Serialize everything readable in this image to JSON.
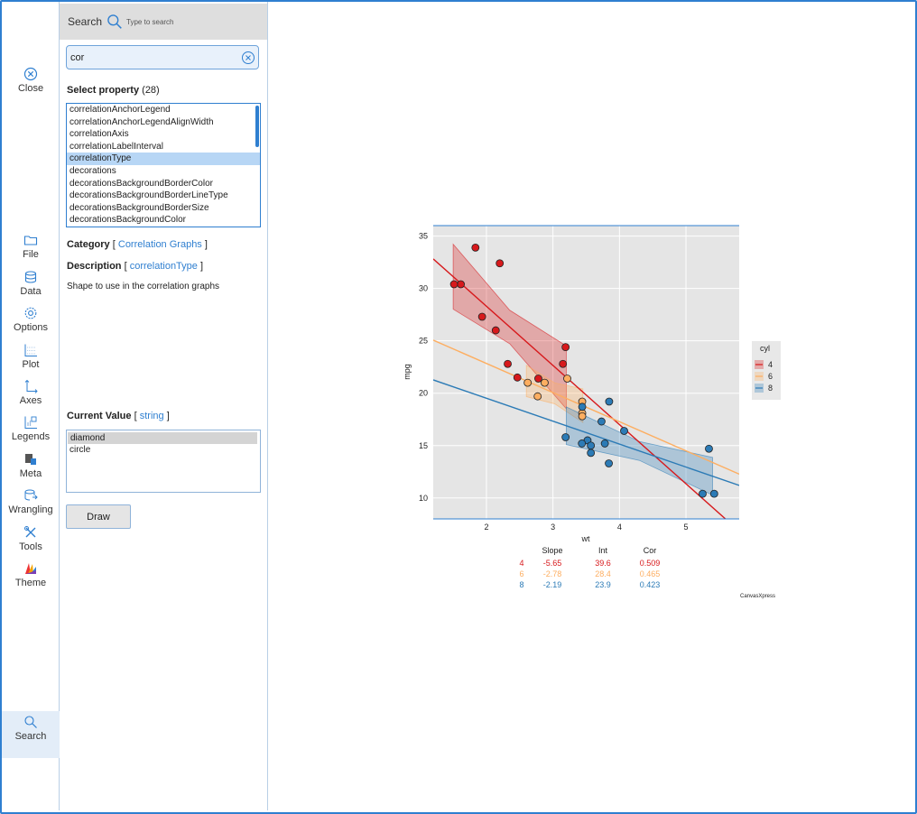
{
  "toolbar": {
    "close": "Close",
    "file": "File",
    "data": "Data",
    "options": "Options",
    "plot": "Plot",
    "axes": "Axes",
    "legends": "Legends",
    "meta": "Meta",
    "wrangling": "Wrangling",
    "tools": "Tools",
    "theme": "Theme",
    "search": "Search"
  },
  "panel": {
    "title": "Search",
    "hint": "Type to search",
    "search_value": "cor",
    "select_property_label": "Select property",
    "select_property_count": "(28)",
    "properties": [
      "correlationAnchorLegend",
      "correlationAnchorLegendAlignWidth",
      "correlationAxis",
      "correlationLabelInterval",
      "correlationType",
      "decorations",
      "decorationsBackgroundBorderColor",
      "decorationsBackgroundBorderLineType",
      "decorationsBackgroundBorderSize",
      "decorationsBackgroundColor"
    ],
    "selected_property": "correlationType",
    "category_label": "Category",
    "category_value": "Correlation Graphs",
    "description_label": "Description",
    "description_value": "correlationType",
    "description_text": "Shape to use in the correlation graphs",
    "current_value_label": "Current Value",
    "current_value_type": "string",
    "values": [
      "diamond",
      "circle"
    ],
    "selected_value": "diamond",
    "draw_button": "Draw"
  },
  "colors": {
    "accent": "#2f7fd0",
    "cyl4": "#d7191c",
    "cyl6": "#fdae61",
    "cyl8": "#2c7bb6",
    "plot_bg": "#e5e5e5"
  },
  "chart_data": {
    "type": "scatter",
    "xlabel": "wt",
    "ylabel": "mpg",
    "xlim": [
      1.2,
      5.8
    ],
    "ylim": [
      8,
      36
    ],
    "xticks": [
      2,
      3,
      4,
      5
    ],
    "yticks": [
      10,
      15,
      20,
      25,
      30,
      35
    ],
    "grid": true,
    "legend": {
      "title": "cyl",
      "placement": "right",
      "entries": [
        "4",
        "6",
        "8"
      ]
    },
    "series": [
      {
        "name": "4",
        "points": [
          [
            2.32,
            22.8
          ],
          [
            3.19,
            24.4
          ],
          [
            3.15,
            22.8
          ],
          [
            2.2,
            32.4
          ],
          [
            1.615,
            30.4
          ],
          [
            1.835,
            33.9
          ],
          [
            2.465,
            21.5
          ],
          [
            1.935,
            27.3
          ],
          [
            2.14,
            26.0
          ],
          [
            1.513,
            30.4
          ],
          [
            2.78,
            21.4
          ]
        ],
        "slope": -5.65,
        "intercept": 39.6,
        "band_x": [
          1.5,
          3.2
        ],
        "band_half_width": [
          3.1,
          1.6,
          3.0
        ]
      },
      {
        "name": "6",
        "points": [
          [
            2.62,
            21.0
          ],
          [
            2.875,
            21.0
          ],
          [
            3.215,
            21.4
          ],
          [
            3.44,
            18.1
          ],
          [
            3.44,
            19.2
          ],
          [
            3.44,
            17.8
          ],
          [
            2.77,
            19.7
          ]
        ],
        "slope": -2.78,
        "intercept": 28.4,
        "band_x": [
          2.6,
          3.45
        ],
        "band_half_width": [
          1.5,
          1.0,
          1.6
        ]
      },
      {
        "name": "8",
        "points": [
          [
            3.44,
            18.7
          ],
          [
            3.57,
            14.3
          ],
          [
            3.19,
            15.8
          ],
          [
            3.52,
            15.5
          ],
          [
            3.435,
            15.2
          ],
          [
            3.84,
            13.3
          ],
          [
            3.845,
            19.2
          ],
          [
            4.07,
            16.4
          ],
          [
            3.73,
            17.3
          ],
          [
            3.78,
            15.2
          ],
          [
            5.25,
            10.4
          ],
          [
            5.424,
            10.4
          ],
          [
            5.345,
            14.7
          ],
          [
            3.57,
            15.0
          ]
        ],
        "slope": -2.19,
        "intercept": 23.9,
        "band_x": [
          3.2,
          5.4
        ],
        "band_half_width": [
          1.8,
          0.9,
          1.8
        ]
      }
    ],
    "stats": {
      "headers": [
        "",
        "Slope",
        "Int",
        "Cor"
      ],
      "rows": [
        [
          "4",
          "-5.65",
          "39.6",
          "0.509"
        ],
        [
          "6",
          "-2.78",
          "28.4",
          "0.465"
        ],
        [
          "8",
          "-2.19",
          "23.9",
          "0.423"
        ]
      ]
    },
    "watermark": "CanvasXpress"
  }
}
